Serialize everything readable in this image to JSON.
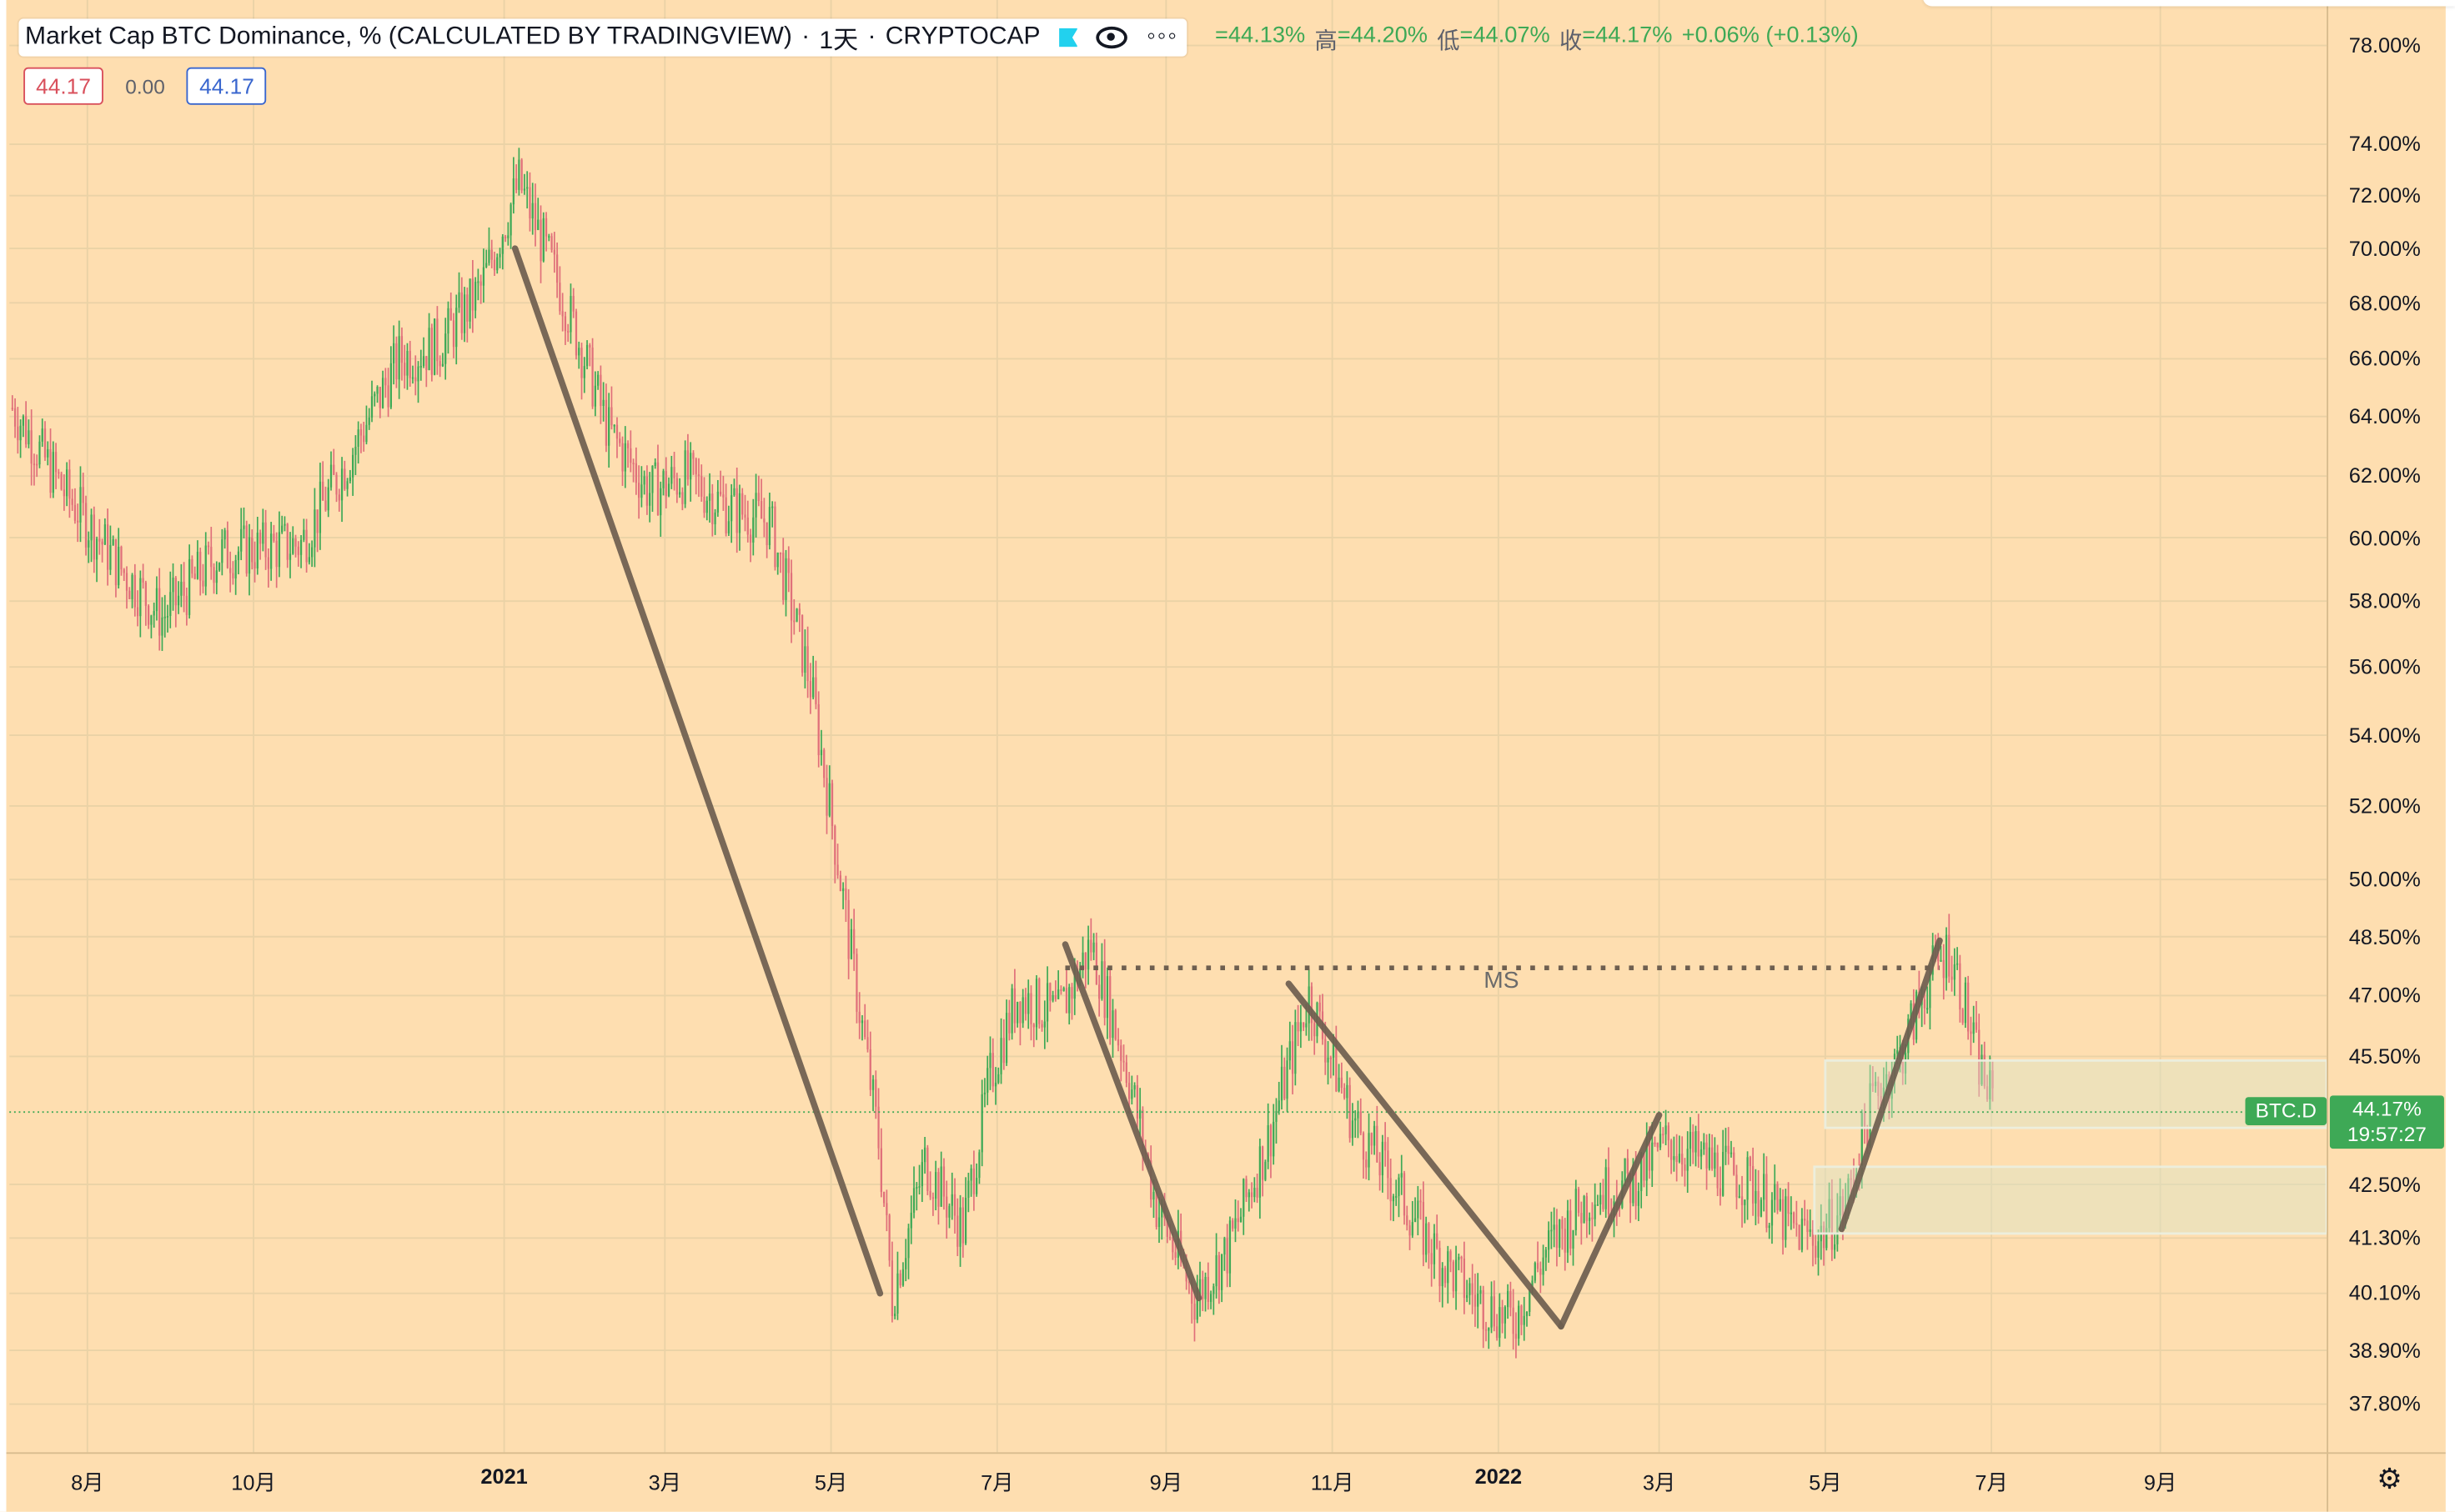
{
  "legend": {
    "title": "Market Cap BTC Dominance, % (CALCULATED BY TRADINGVIEW)",
    "interval": "1天",
    "exchange": "CRYPTOCAP",
    "icons": [
      "flag-icon",
      "eye-icon",
      "more-icon"
    ],
    "more_label": "◦◦◦"
  },
  "ohlc": {
    "open_value": "=44.13%",
    "high_key": "高",
    "high_value": "=44.20%",
    "low_key": "低",
    "low_value": "=44.07%",
    "close_key": "收",
    "close_value": "=44.17%",
    "change": "+0.06% (+0.13%)"
  },
  "indicator": {
    "left": "44.17",
    "mid": "0.00",
    "right": "44.17"
  },
  "price_tag": {
    "symbol": "BTC.D",
    "value": "44.17%",
    "countdown": "19:57:27"
  },
  "annotation": {
    "ms_label": "MS"
  },
  "colors": {
    "background": "#fedeb0",
    "up": "#3ea956",
    "down": "#e0707a",
    "drawing": "#6e5f50"
  },
  "chart_data": {
    "type": "candlestick",
    "title": "Market Cap BTC Dominance, % (CALCULATED BY TRADINGVIEW)",
    "scale": "log",
    "y_ticks": [
      "78.00%",
      "74.00%",
      "72.00%",
      "70.00%",
      "68.00%",
      "66.00%",
      "64.00%",
      "62.00%",
      "60.00%",
      "58.00%",
      "56.00%",
      "54.00%",
      "52.00%",
      "50.00%",
      "48.50%",
      "47.00%",
      "45.50%",
      "42.50%",
      "41.30%",
      "40.10%",
      "38.90%",
      "37.80%"
    ],
    "y_tick_values": [
      78,
      74,
      72,
      70,
      68,
      66,
      64,
      62,
      60,
      58,
      56,
      54,
      52,
      50,
      48.5,
      47,
      45.5,
      42.5,
      41.3,
      40.1,
      38.9,
      37.8
    ],
    "x_ticks": [
      {
        "label": "8月",
        "date": "2020-08-01",
        "bold": false
      },
      {
        "label": "10月",
        "date": "2020-10-01",
        "bold": false
      },
      {
        "label": "2021",
        "date": "2021-01-01",
        "bold": true
      },
      {
        "label": "3月",
        "date": "2021-03-01",
        "bold": false
      },
      {
        "label": "5月",
        "date": "2021-05-01",
        "bold": false
      },
      {
        "label": "7月",
        "date": "2021-07-01",
        "bold": false
      },
      {
        "label": "9月",
        "date": "2021-09-01",
        "bold": false
      },
      {
        "label": "11月",
        "date": "2021-11-01",
        "bold": false
      },
      {
        "label": "2022",
        "date": "2022-01-01",
        "bold": true
      },
      {
        "label": "3月",
        "date": "2022-03-01",
        "bold": false
      },
      {
        "label": "5月",
        "date": "2022-05-01",
        "bold": false
      },
      {
        "label": "7月",
        "date": "2022-07-01",
        "bold": false
      },
      {
        "label": "9月",
        "date": "2022-09-01",
        "bold": false
      }
    ],
    "x_range": [
      "2020-07-01",
      "2022-11-10"
    ],
    "grid": true,
    "last_close": 44.17,
    "series": [
      {
        "date": "2020-07-01",
        "close": 64.3
      },
      {
        "date": "2020-07-20",
        "close": 61.5
      },
      {
        "date": "2020-08-10",
        "close": 59.0
      },
      {
        "date": "2020-08-25",
        "close": 57.5
      },
      {
        "date": "2020-09-15",
        "close": 59.5
      },
      {
        "date": "2020-10-15",
        "close": 59.8
      },
      {
        "date": "2020-11-01",
        "close": 62.5
      },
      {
        "date": "2020-11-20",
        "close": 66.0
      },
      {
        "date": "2020-12-05",
        "close": 66.5
      },
      {
        "date": "2020-12-20",
        "close": 68.5
      },
      {
        "date": "2021-01-03",
        "close": 72.5
      },
      {
        "date": "2021-01-20",
        "close": 68.0
      },
      {
        "date": "2021-02-05",
        "close": 63.5
      },
      {
        "date": "2021-02-20",
        "close": 61.5
      },
      {
        "date": "2021-03-05",
        "close": 62.0
      },
      {
        "date": "2021-03-20",
        "close": 61.0
      },
      {
        "date": "2021-04-05",
        "close": 60.5
      },
      {
        "date": "2021-04-20",
        "close": 55.5
      },
      {
        "date": "2021-05-05",
        "close": 48.0
      },
      {
        "date": "2021-05-15",
        "close": 43.5
      },
      {
        "date": "2021-05-20",
        "close": 40.0
      },
      {
        "date": "2021-06-01",
        "close": 43.0
      },
      {
        "date": "2021-06-15",
        "close": 41.5
      },
      {
        "date": "2021-06-25",
        "close": 45.0
      },
      {
        "date": "2021-07-05",
        "close": 47.0
      },
      {
        "date": "2021-07-20",
        "close": 46.5
      },
      {
        "date": "2021-08-01",
        "close": 48.3
      },
      {
        "date": "2021-08-15",
        "close": 45.0
      },
      {
        "date": "2021-08-25",
        "close": 42.0
      },
      {
        "date": "2021-09-08",
        "close": 40.0
      },
      {
        "date": "2021-09-20",
        "close": 41.0
      },
      {
        "date": "2021-10-05",
        "close": 43.5
      },
      {
        "date": "2021-10-20",
        "close": 47.0
      },
      {
        "date": "2021-11-05",
        "close": 44.0
      },
      {
        "date": "2021-11-20",
        "close": 42.5
      },
      {
        "date": "2021-12-05",
        "close": 41.0
      },
      {
        "date": "2021-12-20",
        "close": 40.0
      },
      {
        "date": "2022-01-03",
        "close": 39.5
      },
      {
        "date": "2022-01-15",
        "close": 41.0
      },
      {
        "date": "2022-02-01",
        "close": 42.3
      },
      {
        "date": "2022-02-15",
        "close": 42.5
      },
      {
        "date": "2022-03-01",
        "close": 43.5
      },
      {
        "date": "2022-03-15",
        "close": 43.0
      },
      {
        "date": "2022-04-01",
        "close": 42.5
      },
      {
        "date": "2022-04-15",
        "close": 41.5
      },
      {
        "date": "2022-04-25",
        "close": 41.3
      },
      {
        "date": "2022-05-05",
        "close": 42.0
      },
      {
        "date": "2022-05-15",
        "close": 44.5
      },
      {
        "date": "2022-05-25",
        "close": 45.5
      },
      {
        "date": "2022-06-05",
        "close": 47.5
      },
      {
        "date": "2022-06-12",
        "close": 48.2
      },
      {
        "date": "2022-06-17",
        "close": 47.0
      },
      {
        "date": "2022-06-22",
        "close": 45.5
      },
      {
        "date": "2022-06-29",
        "close": 44.17
      }
    ],
    "drawings": [
      {
        "type": "trendline",
        "from": {
          "date": "2021-01-05",
          "value": 70.0
        },
        "to": {
          "date": "2021-05-19",
          "value": 40.1
        }
      },
      {
        "type": "trendline",
        "from": {
          "date": "2021-07-26",
          "value": 48.3
        },
        "to": {
          "date": "2021-09-13",
          "value": 40.0
        }
      },
      {
        "type": "trendline",
        "from": {
          "date": "2021-10-16",
          "value": 47.3
        },
        "to": {
          "date": "2022-01-24",
          "value": 39.4
        }
      },
      {
        "type": "trendline",
        "from": {
          "date": "2022-01-24",
          "value": 39.4
        },
        "to": {
          "date": "2022-03-01",
          "value": 44.1
        }
      },
      {
        "type": "trendline",
        "from": {
          "date": "2022-05-07",
          "value": 41.5
        },
        "to": {
          "date": "2022-06-12",
          "value": 48.4
        }
      },
      {
        "type": "horizontal_dotted",
        "from": {
          "date": "2021-07-26",
          "value": 47.7
        },
        "to": {
          "date": "2022-06-12",
          "value": 47.7
        },
        "label": "MS"
      },
      {
        "type": "rectangle",
        "from": {
          "date": "2022-05-01",
          "value": 45.4
        },
        "to": {
          "date": "2022-11-10",
          "value": 43.8
        }
      },
      {
        "type": "rectangle",
        "from": {
          "date": "2022-04-27",
          "value": 42.9
        },
        "to": {
          "date": "2022-11-10",
          "value": 41.4
        }
      }
    ]
  }
}
